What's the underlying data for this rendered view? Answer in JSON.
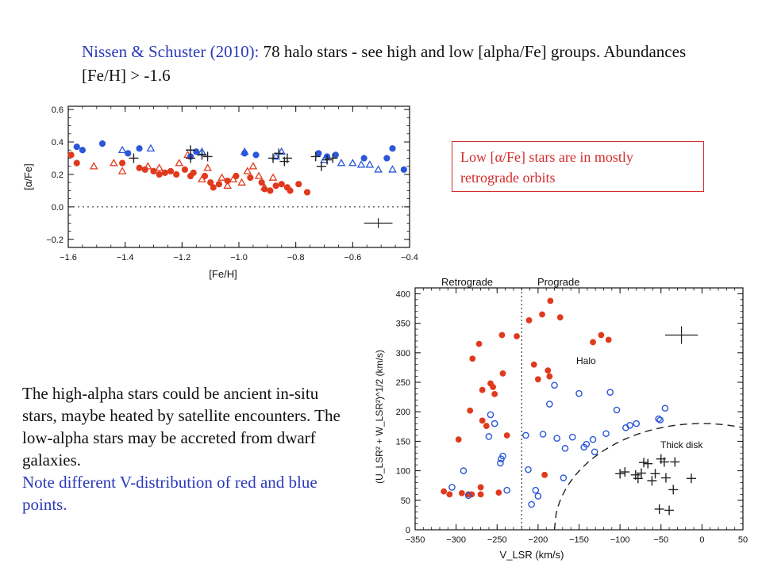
{
  "slide": {
    "title_cite": "Nissen & Schuster (2010):",
    "title_rest": " 78 halo stars - see high and low [alpha/Fe] groups. Abundances [Fe/H] > -1.6",
    "callout_pre": "Low [",
    "callout_alpha": "α",
    "callout_post": "/Fe] stars are in mostly retrograde orbits",
    "body_black": "The high-alpha stars could be ancient in-situ stars, maybe heated by satellite encounters.  The low-alpha stars may be accreted from dwarf galaxies.",
    "body_blue": "Note different V-distribution of red and blue points."
  },
  "chart_data": [
    {
      "type": "scatter",
      "xlabel": "[Fe/H]",
      "ylabel": "[α/Fe]",
      "xlim": [
        -1.6,
        -0.4
      ],
      "ylim": [
        -0.25,
        0.62
      ],
      "xticks": [
        -1.6,
        -1.4,
        -1.2,
        -1.0,
        -0.8,
        -0.6,
        -0.4
      ],
      "xtick_labels": [
        "−1.6",
        "−1.4",
        "−1.2",
        "−1.0",
        "−0.8",
        "−0.6",
        "−0.4"
      ],
      "yticks": [
        -0.2,
        0.0,
        0.2,
        0.4,
        0.6
      ],
      "ytick_labels": [
        "−0.2",
        "0.0",
        "0.2",
        "0.4",
        "0.6"
      ],
      "reference_line_y": 0.0,
      "colors": {
        "high_alpha": "#e03a1e",
        "low_alpha": "#2b57d8",
        "thick_disk": "#222222"
      },
      "series": [
        {
          "key": "high_circle",
          "marker": "circle",
          "color": "high_alpha",
          "points": [
            [
              -1.59,
              0.32
            ],
            [
              -1.57,
              0.27
            ],
            [
              -1.41,
              0.27
            ],
            [
              -1.35,
              0.24
            ],
            [
              -1.33,
              0.23
            ],
            [
              -1.3,
              0.22
            ],
            [
              -1.28,
              0.2
            ],
            [
              -1.26,
              0.21
            ],
            [
              -1.24,
              0.22
            ],
            [
              -1.22,
              0.2
            ],
            [
              -1.19,
              0.23
            ],
            [
              -1.17,
              0.19
            ],
            [
              -1.16,
              0.21
            ],
            [
              -1.12,
              0.19
            ],
            [
              -1.1,
              0.15
            ],
            [
              -1.09,
              0.12
            ],
            [
              -1.07,
              0.14
            ],
            [
              -1.04,
              0.16
            ],
            [
              -1.01,
              0.19
            ],
            [
              -0.96,
              0.18
            ],
            [
              -0.92,
              0.15
            ],
            [
              -0.91,
              0.11
            ],
            [
              -0.89,
              0.1
            ],
            [
              -0.87,
              0.13
            ],
            [
              -0.85,
              0.14
            ],
            [
              -0.83,
              0.12
            ],
            [
              -0.82,
              0.1
            ],
            [
              -0.79,
              0.14
            ],
            [
              -0.76,
              0.09
            ]
          ]
        },
        {
          "key": "high_triangle",
          "marker": "triangle",
          "color": "high_alpha",
          "points": [
            [
              -1.51,
              0.25
            ],
            [
              -1.44,
              0.27
            ],
            [
              -1.41,
              0.22
            ],
            [
              -1.32,
              0.25
            ],
            [
              -1.28,
              0.24
            ],
            [
              -1.21,
              0.27
            ],
            [
              -1.18,
              0.32
            ],
            [
              -1.13,
              0.17
            ],
            [
              -1.11,
              0.24
            ],
            [
              -1.06,
              0.18
            ],
            [
              -1.04,
              0.13
            ],
            [
              -1.02,
              0.17
            ],
            [
              -0.99,
              0.15
            ],
            [
              -0.97,
              0.22
            ],
            [
              -0.95,
              0.25
            ],
            [
              -0.93,
              0.19
            ],
            [
              -0.91,
              0.12
            ],
            [
              -0.88,
              0.18
            ]
          ]
        },
        {
          "key": "low_circle",
          "marker": "circle",
          "color": "low_alpha",
          "points": [
            [
              -1.57,
              0.37
            ],
            [
              -1.55,
              0.35
            ],
            [
              -1.48,
              0.39
            ],
            [
              -1.39,
              0.33
            ],
            [
              -1.35,
              0.36
            ],
            [
              -1.17,
              0.31
            ],
            [
              -1.15,
              0.34
            ],
            [
              -0.98,
              0.33
            ],
            [
              -0.94,
              0.32
            ],
            [
              -0.72,
              0.33
            ],
            [
              -0.69,
              0.31
            ],
            [
              -0.66,
              0.32
            ],
            [
              -0.56,
              0.3
            ],
            [
              -0.48,
              0.3
            ],
            [
              -0.46,
              0.36
            ],
            [
              -0.42,
              0.23
            ]
          ]
        },
        {
          "key": "low_triangle",
          "marker": "triangle",
          "color": "low_alpha",
          "points": [
            [
              -1.41,
              0.35
            ],
            [
              -1.31,
              0.36
            ],
            [
              -1.13,
              0.34
            ],
            [
              -0.98,
              0.34
            ],
            [
              -0.87,
              0.31
            ],
            [
              -0.85,
              0.34
            ],
            [
              -0.7,
              0.29
            ],
            [
              -0.64,
              0.27
            ],
            [
              -0.6,
              0.27
            ],
            [
              -0.57,
              0.26
            ],
            [
              -0.54,
              0.26
            ],
            [
              -0.51,
              0.23
            ],
            [
              -0.46,
              0.23
            ]
          ]
        },
        {
          "key": "thick_cross",
          "marker": "cross",
          "color": "thick_disk",
          "points": [
            [
              -1.37,
              0.3
            ],
            [
              -1.17,
              0.35
            ],
            [
              -1.17,
              0.3
            ],
            [
              -1.13,
              0.32
            ],
            [
              -1.11,
              0.31
            ],
            [
              -0.88,
              0.3
            ],
            [
              -0.86,
              0.33
            ],
            [
              -0.84,
              0.28
            ],
            [
              -0.83,
              0.3
            ],
            [
              -0.73,
              0.31
            ],
            [
              -0.71,
              0.25
            ],
            [
              -0.69,
              0.29
            ],
            [
              -0.67,
              0.3
            ]
          ]
        }
      ],
      "error_bar": {
        "x": -0.51,
        "y": -0.1,
        "dx": 0.05,
        "dy": 0.03
      }
    },
    {
      "type": "scatter",
      "xlabel": "V_LSR (km/s)",
      "ylabel": "(U_LSR² + W_LSR²)^1/2 (km/s)",
      "xlim": [
        -350,
        50
      ],
      "ylim": [
        0,
        410
      ],
      "xticks": [
        -350,
        -300,
        -250,
        -200,
        -150,
        -100,
        -50,
        0,
        50
      ],
      "xtick_labels": [
        "−350",
        "−300",
        "−250",
        "−200",
        "−150",
        "−100",
        "−50",
        "0",
        "50"
      ],
      "yticks": [
        0,
        50,
        100,
        150,
        200,
        250,
        300,
        350,
        400
      ],
      "ytick_labels": [
        "0",
        "50",
        "100",
        "150",
        "200",
        "250",
        "300",
        "350",
        "400"
      ],
      "divider_x": -220,
      "annotations": {
        "retrograde": "Retrograde",
        "prograde": "Prograde",
        "halo": "Halo",
        "thick_disk": "Thick disk"
      },
      "thick_disk_boundary": {
        "center_v": 0,
        "radius": 180
      },
      "series": [
        {
          "key": "red_high_alpha",
          "marker": "filled-circle",
          "color": "#e03a1e",
          "points": [
            [
              -315,
              65
            ],
            [
              -308,
              60
            ],
            [
              -297,
              153
            ],
            [
              -293,
              62
            ],
            [
              -285,
              60
            ],
            [
              -281,
              60
            ],
            [
              -283,
              202
            ],
            [
              -280,
              290
            ],
            [
              -272,
              315
            ],
            [
              -270,
              72
            ],
            [
              -270,
              60
            ],
            [
              -268,
              237
            ],
            [
              -268,
              185
            ],
            [
              -263,
              176
            ],
            [
              -258,
              248
            ],
            [
              -255,
              242
            ],
            [
              -253,
              230
            ],
            [
              -248,
              63
            ],
            [
              -244,
              330
            ],
            [
              -243,
              265
            ],
            [
              -238,
              160
            ],
            [
              -226,
              328
            ],
            [
              -211,
              355
            ],
            [
              -205,
              280
            ],
            [
              -200,
              255
            ],
            [
              -195,
              365
            ],
            [
              -192,
              93
            ],
            [
              -188,
              270
            ],
            [
              -186,
              260
            ],
            [
              -185,
              388
            ],
            [
              -173,
              360
            ],
            [
              -133,
              318
            ],
            [
              -123,
              330
            ],
            [
              -114,
              322
            ]
          ]
        },
        {
          "key": "blue_low_alpha",
          "marker": "open-circle",
          "color": "#2b57d8",
          "points": [
            [
              -305,
              72
            ],
            [
              -291,
              100
            ],
            [
              -285,
              58
            ],
            [
              -260,
              158
            ],
            [
              -258,
              195
            ],
            [
              -253,
              180
            ],
            [
              -246,
              113
            ],
            [
              -245,
              120
            ],
            [
              -243,
              125
            ],
            [
              -238,
              67
            ],
            [
              -215,
              160
            ],
            [
              -212,
              102
            ],
            [
              -208,
              43
            ],
            [
              -203,
              67
            ],
            [
              -200,
              57
            ],
            [
              -194,
              162
            ],
            [
              -186,
              213
            ],
            [
              -180,
              245
            ],
            [
              -177,
              155
            ],
            [
              -169,
              88
            ],
            [
              -167,
              138
            ],
            [
              -158,
              157
            ],
            [
              -150,
              231
            ],
            [
              -144,
              140
            ],
            [
              -141,
              145
            ],
            [
              -133,
              153
            ],
            [
              -131,
              132
            ],
            [
              -117,
              163
            ],
            [
              -112,
              233
            ],
            [
              -104,
              203
            ],
            [
              -93,
              173
            ],
            [
              -88,
              177
            ],
            [
              -80,
              180
            ],
            [
              -53,
              188
            ],
            [
              -51,
              186
            ],
            [
              -45,
              206
            ]
          ]
        },
        {
          "key": "thick_disk",
          "marker": "cross",
          "color": "#222222",
          "points": [
            [
              -100,
              95
            ],
            [
              -94,
              98
            ],
            [
              -81,
              93
            ],
            [
              -78,
              87
            ],
            [
              -74,
              96
            ],
            [
              -71,
              114
            ],
            [
              -66,
              112
            ],
            [
              -61,
              83
            ],
            [
              -57,
              95
            ],
            [
              -50,
              120
            ],
            [
              -46,
              115
            ],
            [
              -44,
              88
            ],
            [
              -33,
              115
            ],
            [
              -35,
              68
            ],
            [
              -13,
              87
            ],
            [
              -52,
              35
            ],
            [
              -40,
              33
            ]
          ]
        }
      ],
      "error_bar": {
        "x": -25,
        "y": 330,
        "dx": 20,
        "dy": 15
      }
    }
  ]
}
